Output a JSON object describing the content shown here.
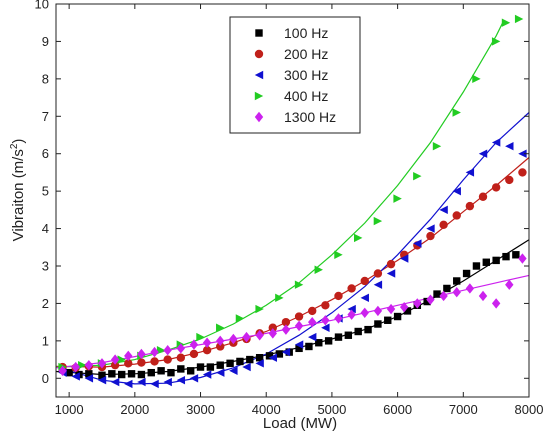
{
  "chart_data": {
    "type": "scatter",
    "xlabel": "Load (MW)",
    "ylabel_main": "Vibraiton (m/s",
    "ylabel_sup": "2",
    "ylabel_tail": ")",
    "xlim": [
      800,
      8000
    ],
    "ylim": [
      -0.5,
      10
    ],
    "xticks": [
      1000,
      2000,
      3000,
      4000,
      5000,
      6000,
      7000,
      8000
    ],
    "yticks": [
      0,
      1,
      2,
      3,
      4,
      5,
      6,
      7,
      8,
      9,
      10
    ],
    "grid": false,
    "legend_position": "top-center",
    "series": [
      {
        "name": "100 Hz",
        "marker": "square",
        "color": "#000000",
        "points": [
          [
            1000,
            0.15
          ],
          [
            1150,
            0.1
          ],
          [
            1300,
            0.12
          ],
          [
            1500,
            0.08
          ],
          [
            1650,
            0.12
          ],
          [
            1800,
            0.1
          ],
          [
            1950,
            0.12
          ],
          [
            2100,
            0.1
          ],
          [
            2250,
            0.15
          ],
          [
            2400,
            0.2
          ],
          [
            2550,
            0.15
          ],
          [
            2700,
            0.25
          ],
          [
            2850,
            0.2
          ],
          [
            3000,
            0.3
          ],
          [
            3150,
            0.3
          ],
          [
            3300,
            0.35
          ],
          [
            3450,
            0.4
          ],
          [
            3600,
            0.45
          ],
          [
            3750,
            0.5
          ],
          [
            3900,
            0.55
          ],
          [
            4050,
            0.6
          ],
          [
            4200,
            0.65
          ],
          [
            4350,
            0.7
          ],
          [
            4500,
            0.8
          ],
          [
            4650,
            0.85
          ],
          [
            4800,
            0.95
          ],
          [
            4950,
            1.0
          ],
          [
            5100,
            1.1
          ],
          [
            5250,
            1.15
          ],
          [
            5400,
            1.25
          ],
          [
            5550,
            1.3
          ],
          [
            5700,
            1.45
          ],
          [
            5850,
            1.55
          ],
          [
            6000,
            1.65
          ],
          [
            6150,
            1.8
          ],
          [
            6300,
            1.95
          ],
          [
            6450,
            2.05
          ],
          [
            6600,
            2.25
          ],
          [
            6750,
            2.4
          ],
          [
            6900,
            2.6
          ],
          [
            7050,
            2.8
          ],
          [
            7200,
            3.0
          ],
          [
            7350,
            3.1
          ],
          [
            7500,
            3.15
          ],
          [
            7650,
            3.25
          ],
          [
            7800,
            3.3
          ]
        ],
        "fit": [
          [
            800,
            0.18
          ],
          [
            1500,
            0.1
          ],
          [
            2000,
            0.12
          ],
          [
            2500,
            0.18
          ],
          [
            3000,
            0.3
          ],
          [
            3500,
            0.45
          ],
          [
            4000,
            0.62
          ],
          [
            4500,
            0.82
          ],
          [
            5000,
            1.05
          ],
          [
            5500,
            1.3
          ],
          [
            6000,
            1.65
          ],
          [
            6500,
            2.1
          ],
          [
            7000,
            2.6
          ],
          [
            7500,
            3.15
          ],
          [
            8000,
            3.7
          ]
        ]
      },
      {
        "name": "200 Hz",
        "marker": "circle",
        "color": "#c0201a",
        "points": [
          [
            900,
            0.3
          ],
          [
            1100,
            0.28
          ],
          [
            1300,
            0.32
          ],
          [
            1500,
            0.3
          ],
          [
            1700,
            0.35
          ],
          [
            1900,
            0.4
          ],
          [
            2100,
            0.42
          ],
          [
            2300,
            0.45
          ],
          [
            2500,
            0.5
          ],
          [
            2700,
            0.55
          ],
          [
            2900,
            0.65
          ],
          [
            3100,
            0.75
          ],
          [
            3300,
            0.85
          ],
          [
            3500,
            0.95
          ],
          [
            3700,
            1.05
          ],
          [
            3900,
            1.2
          ],
          [
            4100,
            1.35
          ],
          [
            4300,
            1.5
          ],
          [
            4500,
            1.65
          ],
          [
            4700,
            1.8
          ],
          [
            4900,
            1.95
          ],
          [
            5100,
            2.2
          ],
          [
            5300,
            2.4
          ],
          [
            5500,
            2.6
          ],
          [
            5700,
            2.8
          ],
          [
            5900,
            3.05
          ],
          [
            6100,
            3.3
          ],
          [
            6300,
            3.55
          ],
          [
            6500,
            3.8
          ],
          [
            6700,
            4.1
          ],
          [
            6900,
            4.35
          ],
          [
            7100,
            4.6
          ],
          [
            7300,
            4.85
          ],
          [
            7500,
            5.1
          ],
          [
            7700,
            5.3
          ],
          [
            7900,
            5.5
          ]
        ],
        "fit": [
          [
            800,
            0.32
          ],
          [
            1500,
            0.3
          ],
          [
            2000,
            0.38
          ],
          [
            2500,
            0.5
          ],
          [
            3000,
            0.7
          ],
          [
            3500,
            0.95
          ],
          [
            4000,
            1.25
          ],
          [
            4500,
            1.65
          ],
          [
            5000,
            2.1
          ],
          [
            5500,
            2.6
          ],
          [
            6000,
            3.15
          ],
          [
            6500,
            3.75
          ],
          [
            7000,
            4.45
          ],
          [
            7500,
            5.15
          ],
          [
            8000,
            5.9
          ]
        ]
      },
      {
        "name": "300 Hz",
        "marker": "triangle-left",
        "color": "#1010d0",
        "points": [
          [
            900,
            0.15
          ],
          [
            1100,
            0.05
          ],
          [
            1300,
            0.0
          ],
          [
            1500,
            -0.05
          ],
          [
            1700,
            -0.1
          ],
          [
            1900,
            -0.15
          ],
          [
            2100,
            -0.1
          ],
          [
            2300,
            -0.15
          ],
          [
            2500,
            -0.1
          ],
          [
            2700,
            -0.05
          ],
          [
            2900,
            0.0
          ],
          [
            3100,
            0.1
          ],
          [
            3300,
            0.15
          ],
          [
            3500,
            0.2
          ],
          [
            3700,
            0.3
          ],
          [
            3900,
            0.4
          ],
          [
            4100,
            0.55
          ],
          [
            4300,
            0.7
          ],
          [
            4500,
            0.9
          ],
          [
            4700,
            1.1
          ],
          [
            4900,
            1.35
          ],
          [
            5100,
            1.6
          ],
          [
            5300,
            1.85
          ],
          [
            5500,
            2.15
          ],
          [
            5700,
            2.5
          ],
          [
            5900,
            2.8
          ],
          [
            6100,
            3.2
          ],
          [
            6300,
            3.6
          ],
          [
            6500,
            4.0
          ],
          [
            6700,
            4.5
          ],
          [
            6900,
            5.0
          ],
          [
            7100,
            5.5
          ],
          [
            7300,
            6.0
          ],
          [
            7500,
            6.3
          ],
          [
            7700,
            6.2
          ],
          [
            7900,
            6.0
          ]
        ],
        "fit": [
          [
            800,
            0.3
          ],
          [
            1500,
            -0.05
          ],
          [
            2000,
            -0.15
          ],
          [
            2500,
            -0.13
          ],
          [
            3000,
            0.02
          ],
          [
            3500,
            0.28
          ],
          [
            4000,
            0.65
          ],
          [
            4500,
            1.15
          ],
          [
            5000,
            1.75
          ],
          [
            5500,
            2.45
          ],
          [
            6000,
            3.3
          ],
          [
            6500,
            4.25
          ],
          [
            7000,
            5.3
          ],
          [
            7500,
            6.3
          ],
          [
            8000,
            7.1
          ]
        ]
      },
      {
        "name": "400 Hz",
        "marker": "triangle-right",
        "color": "#22cc22",
        "points": [
          [
            900,
            0.3
          ],
          [
            1200,
            0.35
          ],
          [
            1500,
            0.4
          ],
          [
            1800,
            0.5
          ],
          [
            2100,
            0.6
          ],
          [
            2400,
            0.75
          ],
          [
            2700,
            0.9
          ],
          [
            3000,
            1.1
          ],
          [
            3300,
            1.35
          ],
          [
            3600,
            1.6
          ],
          [
            3900,
            1.85
          ],
          [
            4200,
            2.15
          ],
          [
            4500,
            2.5
          ],
          [
            4800,
            2.9
          ],
          [
            5100,
            3.3
          ],
          [
            5400,
            3.75
          ],
          [
            5700,
            4.2
          ],
          [
            6000,
            4.8
          ],
          [
            6300,
            5.4
          ],
          [
            6600,
            6.2
          ],
          [
            6900,
            7.1
          ],
          [
            7200,
            8.0
          ],
          [
            7500,
            9.0
          ],
          [
            7650,
            9.5
          ],
          [
            7850,
            9.6
          ]
        ],
        "fit": [
          [
            800,
            0.3
          ],
          [
            1500,
            0.35
          ],
          [
            2000,
            0.5
          ],
          [
            2500,
            0.75
          ],
          [
            3000,
            1.05
          ],
          [
            3500,
            1.45
          ],
          [
            4000,
            1.95
          ],
          [
            4500,
            2.55
          ],
          [
            5000,
            3.3
          ],
          [
            5500,
            4.15
          ],
          [
            6000,
            5.15
          ],
          [
            6500,
            6.3
          ],
          [
            7000,
            7.65
          ],
          [
            7500,
            9.15
          ],
          [
            7600,
            9.5
          ]
        ]
      },
      {
        "name": "1300 Hz",
        "marker": "diamond",
        "color": "#cc22ee",
        "points": [
          [
            900,
            0.2
          ],
          [
            1100,
            0.3
          ],
          [
            1300,
            0.35
          ],
          [
            1500,
            0.4
          ],
          [
            1700,
            0.5
          ],
          [
            1900,
            0.6
          ],
          [
            2100,
            0.65
          ],
          [
            2300,
            0.7
          ],
          [
            2500,
            0.75
          ],
          [
            2700,
            0.8
          ],
          [
            2900,
            0.9
          ],
          [
            3100,
            0.95
          ],
          [
            3300,
            1.0
          ],
          [
            3500,
            1.05
          ],
          [
            3700,
            1.1
          ],
          [
            3900,
            1.15
          ],
          [
            4100,
            1.2
          ],
          [
            4300,
            1.3
          ],
          [
            4500,
            1.4
          ],
          [
            4700,
            1.5
          ],
          [
            4900,
            1.55
          ],
          [
            5100,
            1.6
          ],
          [
            5300,
            1.7
          ],
          [
            5500,
            1.75
          ],
          [
            5700,
            1.8
          ],
          [
            5900,
            1.85
          ],
          [
            6100,
            1.9
          ],
          [
            6300,
            2.0
          ],
          [
            6500,
            2.1
          ],
          [
            6700,
            2.2
          ],
          [
            6900,
            2.3
          ],
          [
            7100,
            2.4
          ],
          [
            7300,
            2.2
          ],
          [
            7500,
            2.0
          ],
          [
            7700,
            2.5
          ],
          [
            7900,
            3.2
          ]
        ],
        "fit": [
          [
            800,
            0.28
          ],
          [
            1500,
            0.42
          ],
          [
            2000,
            0.58
          ],
          [
            2500,
            0.75
          ],
          [
            3000,
            0.9
          ],
          [
            3500,
            1.05
          ],
          [
            4000,
            1.2
          ],
          [
            4500,
            1.38
          ],
          [
            5000,
            1.55
          ],
          [
            5500,
            1.75
          ],
          [
            6000,
            1.95
          ],
          [
            6500,
            2.15
          ],
          [
            7000,
            2.35
          ],
          [
            7500,
            2.55
          ],
          [
            8000,
            2.75
          ]
        ]
      }
    ]
  }
}
